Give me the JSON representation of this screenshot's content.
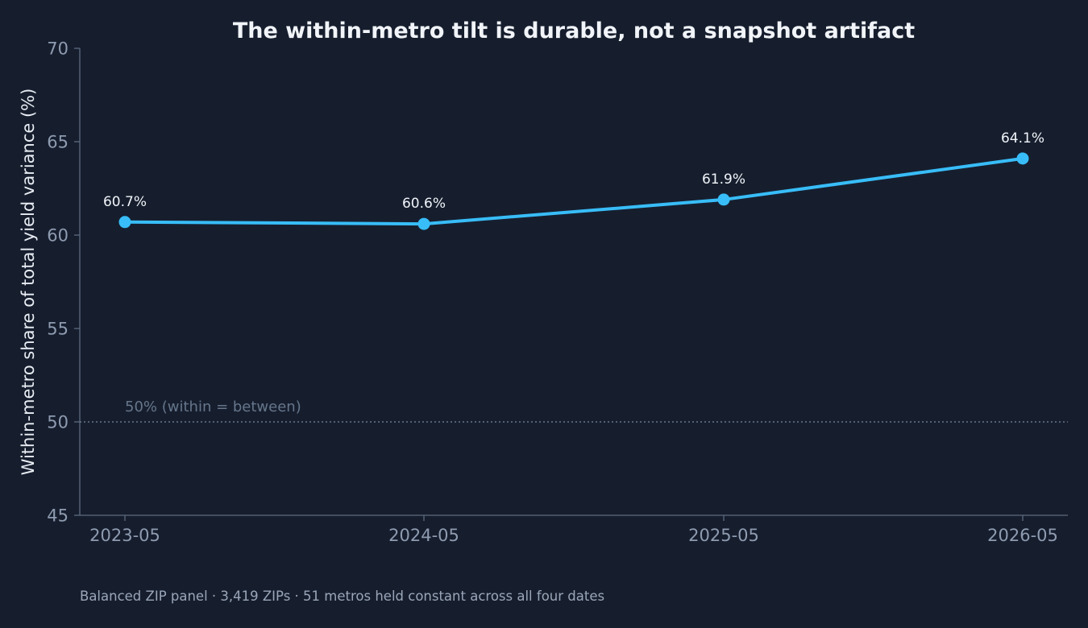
{
  "chart_data": {
    "type": "line",
    "title": "The within-metro tilt is durable, not a snapshot artifact",
    "ylabel": "Within-metro share of total yield variance  (%)",
    "xlabel": "",
    "categories": [
      "2023-05",
      "2024-05",
      "2025-05",
      "2026-05"
    ],
    "series": [
      {
        "values": [
          60.7,
          60.6,
          61.9,
          64.1
        ],
        "data_labels": [
          "60.7%",
          "60.6%",
          "61.9%",
          "64.1%"
        ]
      }
    ],
    "ylim": [
      45,
      70
    ],
    "yticks": [
      45,
      50,
      55,
      60,
      65,
      70
    ],
    "reference_line": {
      "value": 50,
      "label": "50% (within = between)"
    },
    "grid": false,
    "footnote": "Balanced ZIP panel · 3,419 ZIPs · 51 metros held constant across all four dates",
    "colors": {
      "background": "#161e2e",
      "line": "#38bdf8",
      "axis": "#5c6a7e",
      "reference": "#66768b"
    }
  }
}
